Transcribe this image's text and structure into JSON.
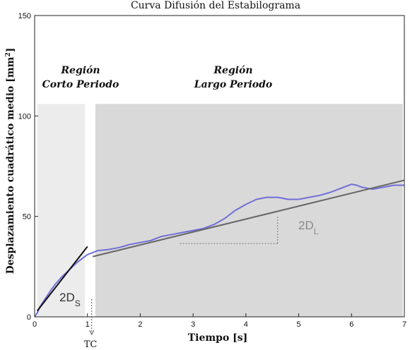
{
  "chart_data": {
    "type": "line",
    "title": "Curva Difusión del Estabilograma",
    "xlabel": "Tiempo [s]",
    "ylabel_main": "Desplazamiento cuadrático medio [mm",
    "ylabel_sup": "2",
    "ylabel_end": "]",
    "xlim": [
      0,
      7
    ],
    "ylim": [
      0,
      150
    ],
    "x_ticks": [
      0,
      1,
      2,
      3,
      4,
      5,
      6,
      7
    ],
    "y_ticks": [
      0,
      50,
      100,
      150
    ],
    "grid": false,
    "regions": [
      {
        "label_line1": "Región",
        "label_line2": "Corto Periodo",
        "x_start": 0.05,
        "x_end": 0.95,
        "y_top": 106,
        "color": "#ececec"
      },
      {
        "label_line1": "Región",
        "label_line2": "Largo Periodo",
        "x_start": 1.15,
        "x_end": 6.97,
        "y_top": 106,
        "color": "#d9d9d9"
      }
    ],
    "series": [
      {
        "color": "#6f6fd8",
        "x": [
          0,
          0.05,
          0.1,
          0.2,
          0.3,
          0.4,
          0.5,
          0.6,
          0.7,
          0.8,
          0.9,
          1.0,
          1.1,
          1.2,
          1.4,
          1.6,
          1.8,
          2.0,
          2.2,
          2.4,
          2.6,
          2.8,
          3.0,
          3.2,
          3.4,
          3.6,
          3.8,
          4.0,
          4.2,
          4.4,
          4.6,
          4.8,
          5.0,
          5.2,
          5.4,
          5.6,
          5.8,
          6.0,
          6.1,
          6.2,
          6.4,
          6.6,
          6.8,
          7.0
        ],
        "y": [
          0,
          2,
          5,
          9,
          13,
          16.5,
          19.5,
          22,
          24.5,
          27,
          29,
          31,
          32,
          33,
          33.5,
          34.5,
          36,
          37,
          38,
          40,
          41,
          42,
          43,
          44,
          46,
          49,
          53,
          56,
          58.5,
          59.5,
          59.5,
          58.5,
          58.5,
          59.5,
          60.5,
          62,
          64,
          66,
          65.5,
          64.5,
          63.5,
          64.5,
          65.5,
          65.5
        ]
      }
    ],
    "fits": [
      {
        "name": "short",
        "x": [
          0.05,
          1.0
        ],
        "y": [
          3,
          35
        ],
        "color": "#111111"
      },
      {
        "name": "long",
        "x": [
          1.1,
          7.0
        ],
        "y": [
          30,
          68
        ],
        "color": "#666666"
      }
    ],
    "annotations": {
      "ds_main": "2D",
      "ds_sub": "S",
      "dl_main": "2D",
      "dl_sub": "L",
      "tc": "TC",
      "tc_x": 1.08,
      "slope_horizontal": {
        "x": [
          2.75,
          4.6
        ],
        "y": 36.5
      },
      "slope_vertical": {
        "x": 4.6,
        "y": [
          36.5,
          50
        ]
      }
    }
  }
}
